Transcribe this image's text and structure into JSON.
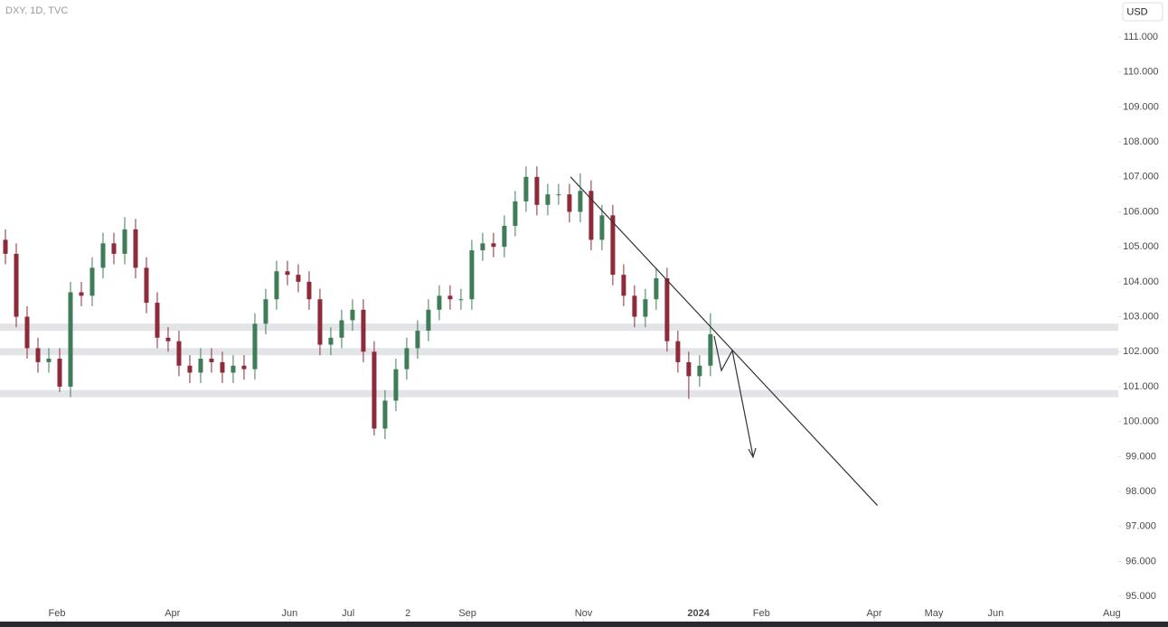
{
  "chart_data": {
    "type": "candlestick",
    "title": "DXY, 1D, TVC",
    "currency": "USD",
    "up_color": "#3f7d58",
    "down_color": "#8e2a3a",
    "zone_color": "#e3e4e8",
    "xlim": [
      0,
      103.1
    ],
    "xticks": [
      {
        "value": 5.25,
        "label": "Feb"
      },
      {
        "value": 15.9,
        "label": "Apr"
      },
      {
        "value": 26.7,
        "label": "Jun"
      },
      {
        "value": 32.1,
        "label": "Jul"
      },
      {
        "value": 37.6,
        "label": "2"
      },
      {
        "value": 43.1,
        "label": "Sep"
      },
      {
        "value": 53.8,
        "label": "Nov"
      },
      {
        "value": 64.4,
        "label": "2024"
      },
      {
        "value": 70.2,
        "label": "Feb"
      },
      {
        "value": 80.6,
        "label": "Apr"
      },
      {
        "value": 86.1,
        "label": "May"
      },
      {
        "value": 91.8,
        "label": "Jun"
      },
      {
        "value": 102.5,
        "label": "Aug"
      }
    ],
    "ylim": [
      94.28,
      112.06
    ],
    "yticks": [
      {
        "value": 95,
        "label": "95.000"
      },
      {
        "value": 96,
        "label": "96.000"
      },
      {
        "value": 97,
        "label": "97.000"
      },
      {
        "value": 98,
        "label": "98.000"
      },
      {
        "value": 99,
        "label": "99.000"
      },
      {
        "value": 100,
        "label": "100.000"
      },
      {
        "value": 101,
        "label": "101.000"
      },
      {
        "value": 102,
        "label": "102.000"
      },
      {
        "value": 103,
        "label": "103.000"
      },
      {
        "value": 104,
        "label": "104.000"
      },
      {
        "value": 105,
        "label": "105.000"
      },
      {
        "value": 106,
        "label": "106.000"
      },
      {
        "value": 107,
        "label": "107.000"
      },
      {
        "value": 108,
        "label": "108.000"
      },
      {
        "value": 109,
        "label": "109.000"
      },
      {
        "value": 110,
        "label": "110.000"
      },
      {
        "value": 111,
        "label": "111.000"
      }
    ],
    "open": [
      105.2,
      104.8,
      103.0,
      102.1,
      101.7,
      101.8,
      101.0,
      103.7,
      103.6,
      104.4,
      105.1,
      104.8,
      105.5,
      104.4,
      103.4,
      102.4,
      102.3,
      101.6,
      101.4,
      101.8,
      101.7,
      101.4,
      101.6,
      101.5,
      102.8,
      103.5,
      104.3,
      104.2,
      104.0,
      103.5,
      102.2,
      102.4,
      102.9,
      103.2,
      102.0,
      99.8,
      100.6,
      101.5,
      102.1,
      102.6,
      103.2,
      103.6,
      103.5,
      103.5,
      104.9,
      105.1,
      105.0,
      105.6,
      106.3,
      107.0,
      106.2,
      106.5,
      106.5,
      106.0,
      106.6,
      105.2,
      105.9,
      104.2,
      103.6,
      103.0,
      103.5,
      104.1,
      102.3,
      101.7,
      101.3,
      101.6
    ],
    "high": [
      105.5,
      105.1,
      103.3,
      102.4,
      102.1,
      102.1,
      104.0,
      104.0,
      104.7,
      105.4,
      105.4,
      105.85,
      105.8,
      104.7,
      103.7,
      102.7,
      102.6,
      101.9,
      102.1,
      102.1,
      102.0,
      101.9,
      101.9,
      103.1,
      103.8,
      104.6,
      104.6,
      104.5,
      104.3,
      103.8,
      102.7,
      103.2,
      103.5,
      103.5,
      102.3,
      100.9,
      101.8,
      102.4,
      102.9,
      103.5,
      103.9,
      103.9,
      103.8,
      105.2,
      105.4,
      105.4,
      105.9,
      106.6,
      107.3,
      107.3,
      106.8,
      106.8,
      106.8,
      107.1,
      106.9,
      106.2,
      106.2,
      104.5,
      103.9,
      103.8,
      104.4,
      104.4,
      102.6,
      102.0,
      101.9,
      103.1
    ],
    "low": [
      104.5,
      102.7,
      101.8,
      101.4,
      101.4,
      100.85,
      100.7,
      103.3,
      103.3,
      104.1,
      104.5,
      104.5,
      104.1,
      103.1,
      102.1,
      102.0,
      101.3,
      101.1,
      101.1,
      101.4,
      101.1,
      101.1,
      101.2,
      101.2,
      102.5,
      103.2,
      103.9,
      103.7,
      103.2,
      101.9,
      101.9,
      102.1,
      102.6,
      101.7,
      99.6,
      99.5,
      100.3,
      101.2,
      101.8,
      102.3,
      102.9,
      103.2,
      103.2,
      103.2,
      104.6,
      104.7,
      104.7,
      105.3,
      106.0,
      105.9,
      105.9,
      106.2,
      105.7,
      105.7,
      104.9,
      104.9,
      103.9,
      103.3,
      102.7,
      102.7,
      103.2,
      102.0,
      101.4,
      100.65,
      101.0,
      101.3
    ],
    "close": [
      104.8,
      103.0,
      102.1,
      101.7,
      101.8,
      101.0,
      103.7,
      103.6,
      104.4,
      105.1,
      104.8,
      105.5,
      104.4,
      103.4,
      102.4,
      102.3,
      101.6,
      101.4,
      101.8,
      101.7,
      101.4,
      101.6,
      101.5,
      102.8,
      103.5,
      104.3,
      104.2,
      104.0,
      103.5,
      102.2,
      102.4,
      102.9,
      103.2,
      102.0,
      99.8,
      100.6,
      101.5,
      102.1,
      102.6,
      103.2,
      103.6,
      103.5,
      103.5,
      104.9,
      105.1,
      105.0,
      105.6,
      106.3,
      107.0,
      106.2,
      106.5,
      106.5,
      106.0,
      106.6,
      105.2,
      105.9,
      104.2,
      103.6,
      103.0,
      103.5,
      104.1,
      102.3,
      101.7,
      101.3,
      101.6,
      102.5
    ],
    "zones": [
      102.7,
      102.0,
      100.8
    ],
    "trendline": {
      "x": [
        52.6,
        80.9
      ],
      "y": [
        107.0,
        97.6
      ]
    }
  }
}
